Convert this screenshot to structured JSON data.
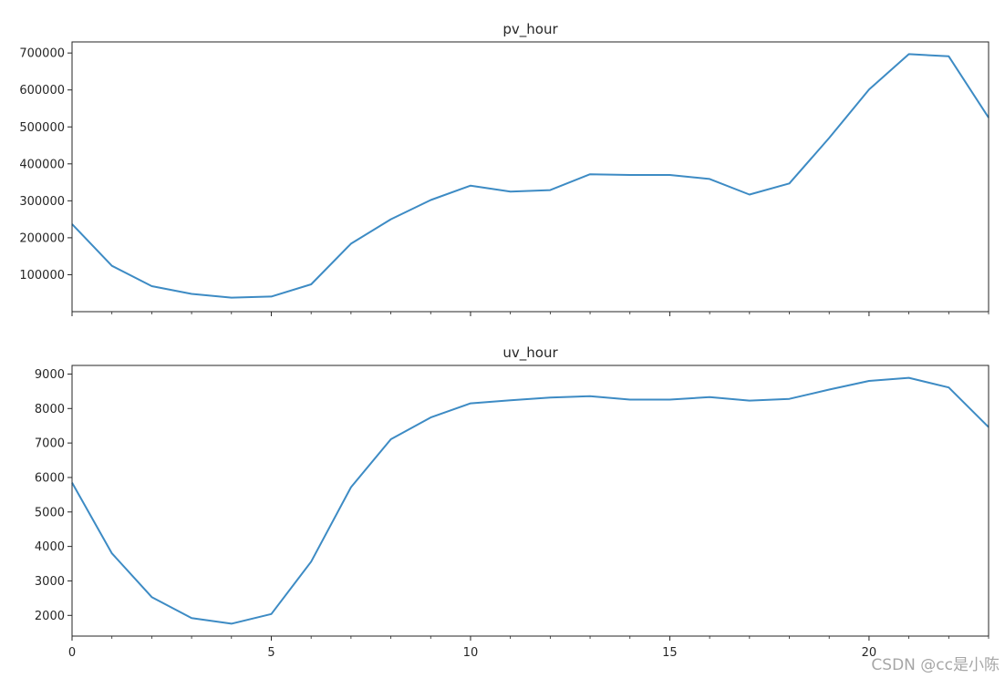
{
  "chart_data": [
    {
      "type": "line",
      "title": "pv_hour",
      "xlabel": "",
      "ylabel": "",
      "x": [
        0,
        1,
        2,
        3,
        4,
        5,
        6,
        7,
        8,
        9,
        10,
        11,
        12,
        13,
        14,
        15,
        16,
        17,
        18,
        19,
        20,
        21,
        22,
        23
      ],
      "series": [
        {
          "values": [
            237000,
            124000,
            69000,
            48000,
            38000,
            41000,
            74000,
            184000,
            250000,
            302000,
            341000,
            325000,
            329000,
            372000,
            370000,
            370000,
            359000,
            317000,
            347000,
            470000,
            601000,
            697000,
            691000,
            525000
          ]
        }
      ],
      "xlim": [
        0,
        23
      ],
      "ylim": [
        0,
        730000
      ],
      "xticks": [
        0,
        5,
        10,
        15,
        20
      ],
      "xtick_labels_visible": false,
      "yticks": [
        100000,
        200000,
        300000,
        400000,
        500000,
        600000,
        700000
      ],
      "ytick_labels": [
        "100000",
        "200000",
        "300000",
        "400000",
        "500000",
        "600000",
        "700000"
      ],
      "grid": false,
      "legend": "none",
      "line_color": "#3d8bc4"
    },
    {
      "type": "line",
      "title": "uv_hour",
      "xlabel": "",
      "ylabel": "",
      "x": [
        0,
        1,
        2,
        3,
        4,
        5,
        6,
        7,
        8,
        9,
        10,
        11,
        12,
        13,
        14,
        15,
        16,
        17,
        18,
        19,
        20,
        21,
        22,
        23
      ],
      "series": [
        {
          "values": [
            5850,
            3800,
            2530,
            1920,
            1760,
            2040,
            3560,
            5720,
            7110,
            7740,
            8150,
            8240,
            8320,
            8360,
            8260,
            8260,
            8330,
            8230,
            8280,
            8550,
            8800,
            8890,
            8610,
            7460
          ]
        }
      ],
      "xlim": [
        0,
        23
      ],
      "ylim": [
        1400,
        9250
      ],
      "xticks": [
        0,
        5,
        10,
        15,
        20
      ],
      "xtick_labels": [
        "0",
        "5",
        "10",
        "15",
        "20"
      ],
      "yticks": [
        2000,
        3000,
        4000,
        5000,
        6000,
        7000,
        8000,
        9000
      ],
      "ytick_labels": [
        "2000",
        "3000",
        "4000",
        "5000",
        "6000",
        "7000",
        "8000",
        "9000"
      ],
      "grid": false,
      "legend": "none",
      "line_color": "#3d8bc4"
    }
  ],
  "watermark": "CSDN @cc是小陈"
}
